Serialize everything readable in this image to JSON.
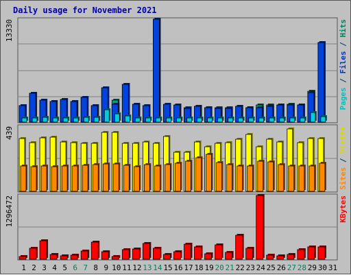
{
  "chart_data": {
    "type": "bar",
    "title": "Daily usage for November 2021",
    "categories": [
      "1",
      "2",
      "3",
      "4",
      "5",
      "6",
      "7",
      "8",
      "9",
      "10",
      "11",
      "12",
      "13",
      "14",
      "15",
      "16",
      "17",
      "18",
      "19",
      "20",
      "21",
      "22",
      "23",
      "24",
      "25",
      "26",
      "27",
      "28",
      "29",
      "30",
      "31"
    ],
    "weekend_days": [
      "6",
      "7",
      "13",
      "14",
      "20",
      "21",
      "27",
      "28"
    ],
    "panels": [
      {
        "name": "hits-files-pages",
        "ymax_label": "13330",
        "ymax": 13330,
        "right_label_parts": [
          {
            "text": "Pages",
            "color": "#00c0c0"
          },
          {
            "text": " / ",
            "color": "#003366"
          },
          {
            "text": "Files",
            "color": "#0033cc"
          },
          {
            "text": " / ",
            "color": "#003366"
          },
          {
            "text": "Hits",
            "color": "#008060"
          }
        ],
        "series": [
          {
            "name": "Hits",
            "color": "#00a080",
            "values": [
              2100,
              3700,
              2800,
              2700,
              2900,
              2700,
              3200,
              2100,
              4400,
              2800,
              4900,
              2300,
              2100,
              13300,
              2100,
              2100,
              1900,
              2000,
              1900,
              1900,
              1900,
              2000,
              1900,
              2200,
              2200,
              2200,
              2300,
              2200,
              4000,
              10300,
              0
            ]
          },
          {
            "name": "Files",
            "color": "#0044dd",
            "values": [
              2100,
              3700,
              2800,
              2700,
              2900,
              2700,
              3200,
              2100,
              4400,
              2300,
              4900,
              2300,
              2100,
              13300,
              2300,
              2200,
              1800,
              2000,
              1900,
              1800,
              1800,
              2000,
              1900,
              1900,
              2000,
              2200,
              2200,
              2200,
              3800,
              10300,
              0
            ]
          },
          {
            "name": "Pages",
            "color": "#00ccdd",
            "values": [
              500,
              500,
              600,
              500,
              500,
              500,
              600,
              600,
              1600,
              1100,
              800,
              500,
              500,
              500,
              500,
              500,
              500,
              500,
              500,
              500,
              500,
              500,
              500,
              500,
              500,
              500,
              500,
              500,
              1200,
              700,
              0
            ]
          }
        ]
      },
      {
        "name": "visits-sites",
        "ymax_label": "439",
        "ymax": 439,
        "right_label_parts": [
          {
            "text": "Sites",
            "color": "#ff8800"
          },
          {
            "text": " / ",
            "color": "#003366"
          },
          {
            "text": "Visits",
            "color": "#d8d800"
          }
        ],
        "series": [
          {
            "name": "Visits",
            "color": "#ffff00",
            "values": [
              355,
              330,
              362,
              367,
              332,
              330,
              322,
              324,
              398,
              398,
              322,
              324,
              332,
              324,
              370,
              265,
              265,
              335,
              302,
              324,
              330,
              350,
              382,
              302,
              350,
              335,
              420,
              330,
              357,
              357,
              0
            ]
          },
          {
            "name": "Sites",
            "color": "#ff8800",
            "values": [
              170,
              165,
              170,
              165,
              170,
              170,
              175,
              180,
              185,
              185,
              175,
              165,
              180,
              170,
              180,
              190,
              205,
              225,
              250,
              195,
              180,
              170,
              170,
              205,
              200,
              180,
              170,
              170,
              170,
              190,
              0
            ]
          }
        ]
      },
      {
        "name": "kbytes",
        "ymax_label": "1296472",
        "ymax": 1296472,
        "right_label_parts": [
          {
            "text": "KBytes",
            "color": "#ff0000"
          }
        ],
        "series": [
          {
            "name": "KBytes",
            "color": "#ff0000",
            "values": [
              55000,
              230000,
              375000,
              100000,
              70000,
              90000,
              170000,
              350000,
              150000,
              50000,
              200000,
              215000,
              320000,
              230000,
              100000,
              155000,
              300000,
              255000,
              110000,
              295000,
              140000,
              485000,
              230000,
              1296472,
              80000,
              70000,
              100000,
              200000,
              245000,
              250000,
              0
            ]
          }
        ]
      }
    ]
  },
  "colors": {
    "background": "#c0c0c0",
    "plot": "#c0c0c0",
    "grid": "#808080",
    "weekday_label": "#000000",
    "weekend_label": "#008060",
    "title": "#0000aa"
  }
}
